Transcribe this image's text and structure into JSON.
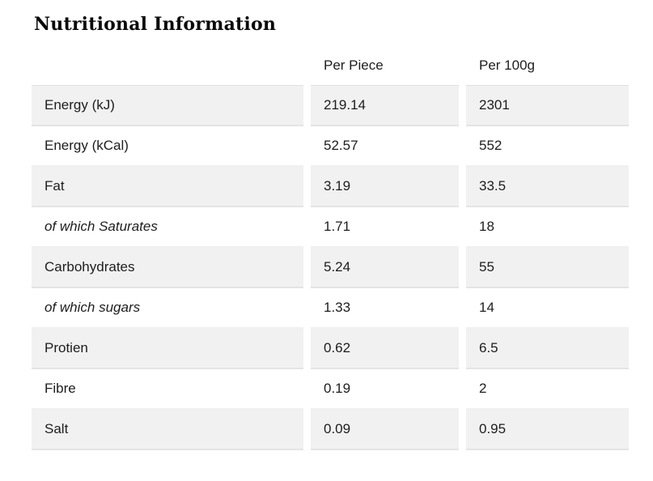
{
  "page": {
    "title": "Nutritional Information"
  },
  "table": {
    "columns": {
      "label": "",
      "per_piece": "Per Piece",
      "per_100g": "Per 100g"
    },
    "rows": [
      {
        "label": "Energy (kJ)",
        "per_piece": "219.14",
        "per_100g": "2301",
        "italic": false
      },
      {
        "label": "Energy (kCal)",
        "per_piece": "52.57",
        "per_100g": "552",
        "italic": false
      },
      {
        "label": "Fat",
        "per_piece": "3.19",
        "per_100g": "33.5",
        "italic": false
      },
      {
        "label": "of which Saturates",
        "per_piece": "1.71",
        "per_100g": "18",
        "italic": true
      },
      {
        "label": "Carbohydrates",
        "per_piece": "5.24",
        "per_100g": "55",
        "italic": false
      },
      {
        "label": "of which sugars",
        "per_piece": "1.33",
        "per_100g": "14",
        "italic": true
      },
      {
        "label": "Protien",
        "per_piece": "0.62",
        "per_100g": "6.5",
        "italic": false
      },
      {
        "label": "Fibre",
        "per_piece": "0.19",
        "per_100g": "2",
        "italic": false
      },
      {
        "label": "Salt",
        "per_piece": "0.09",
        "per_100g": "0.95",
        "italic": false
      }
    ]
  },
  "colors": {
    "text": "#1d1d1d",
    "stripe_bg": "#f1f1f1",
    "stripe_border": "#e4e4e4",
    "plain_row_border": "#f0f0f0",
    "header_border": "#e0e0e0"
  }
}
